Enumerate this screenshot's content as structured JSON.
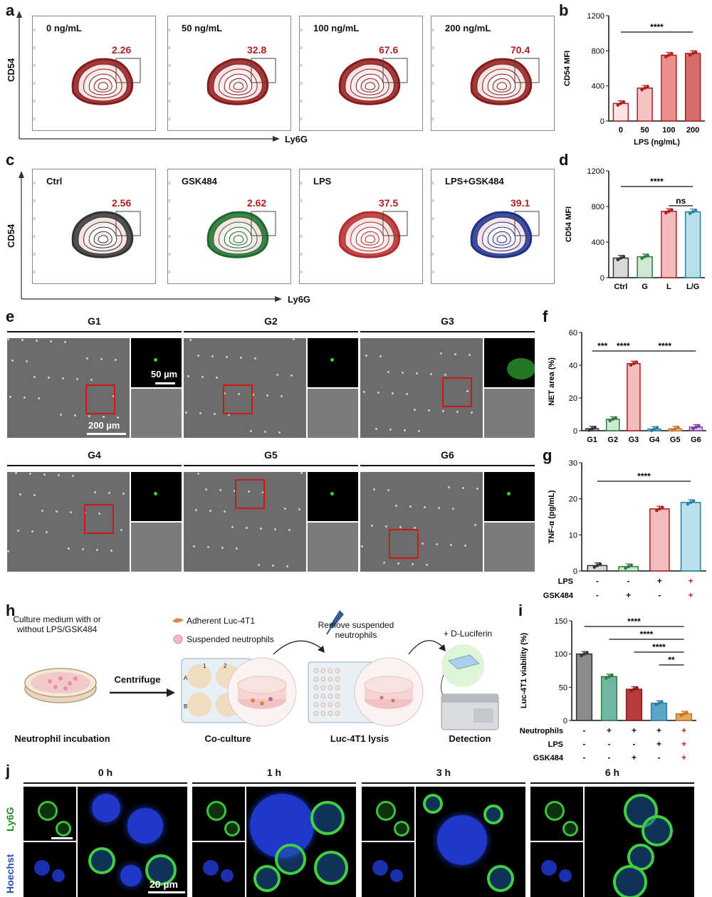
{
  "panels": {
    "a": "a",
    "b": "b",
    "c": "c",
    "d": "d",
    "e": "e",
    "f": "f",
    "g": "g",
    "h": "h",
    "i": "i",
    "j": "j"
  },
  "flow_a": {
    "titles": [
      "0 ng/mL",
      "50 ng/mL",
      "100 ng/mL",
      "200 ng/mL"
    ],
    "gates": [
      "2.26",
      "32.8",
      "67.6",
      "70.4"
    ],
    "ylabel": "CD54",
    "xlabel": "Ly6G",
    "colors": [
      "#8b1a1a",
      "#8b1a1a",
      "#8b1a1a",
      "#8b1a1a"
    ]
  },
  "flow_c": {
    "titles": [
      "Ctrl",
      "GSK484",
      "LPS",
      "LPS+GSK484"
    ],
    "gates": [
      "2.56",
      "2.62",
      "37.5",
      "39.1"
    ],
    "ylabel": "CD54",
    "xlabel": "Ly6G",
    "colors": [
      "#333333",
      "#1d6b2a",
      "#b52a2a",
      "#1f2f8a"
    ]
  },
  "micro_e": {
    "titles": [
      "G1",
      "G2",
      "G3",
      "G4",
      "G5",
      "G6"
    ],
    "scale_main": "200 µm",
    "scale_inset": "50 µm"
  },
  "flow_h": {
    "medium": "Culture medium with or without LPS/GSK484",
    "incubation": "Neutrophil incubation",
    "centrifuge": "Centrifuge",
    "adherent": "Adherent Luc-4T1",
    "suspended": "Suspended neutrophils",
    "remove": "Remove suspended neutrophils",
    "luciferin": "+ D-Luciferin",
    "coculture": "Co-culture",
    "lysis": "Luc-4T1 lysis",
    "detection": "Detection",
    "wells": [
      "1",
      "2",
      "A",
      "B"
    ]
  },
  "conf_j": {
    "times": [
      "0 h",
      "1 h",
      "3 h",
      "6 h"
    ],
    "row1": "Ly6G",
    "row2": "Hoechst",
    "scale": "20 µm"
  },
  "chart_data": [
    {
      "panel": "b",
      "type": "bar",
      "categories": [
        "0",
        "50",
        "100",
        "200"
      ],
      "values": [
        200,
        375,
        750,
        770
      ],
      "xlabel": "LPS (ng/mL)",
      "ylabel": "CD54 MFI",
      "ylim": [
        0,
        1200
      ],
      "yticks": [
        0,
        400,
        800,
        1200
      ],
      "fill": [
        "#fbe3e3",
        "#f7c4c4",
        "#ec8e8e",
        "#d86b6b"
      ],
      "stroke": "#b01f1f",
      "sig": [
        {
          "from": 0,
          "to": 3,
          "label": "****"
        }
      ]
    },
    {
      "panel": "d",
      "type": "bar",
      "categories": [
        "Ctrl",
        "G",
        "L",
        "L/G"
      ],
      "values": [
        220,
        235,
        745,
        740
      ],
      "ylabel": "CD54 MFI",
      "ylim": [
        0,
        1200
      ],
      "yticks": [
        0,
        400,
        800,
        1200
      ],
      "fill": [
        "#d9d9d9",
        "#cfe8d3",
        "#f4bcbc",
        "#b9e0ea"
      ],
      "stroke": [
        "#333333",
        "#2e7d3d",
        "#b01f1f",
        "#2a7fa3"
      ],
      "sig": [
        {
          "from": 0,
          "to": 3,
          "label": "****"
        },
        {
          "from": 2,
          "to": 3,
          "label": "ns"
        }
      ]
    },
    {
      "panel": "f",
      "type": "bar",
      "categories": [
        "G1",
        "G2",
        "G3",
        "G4",
        "G5",
        "G6"
      ],
      "values": [
        1.2,
        7,
        41,
        1,
        1.2,
        2.2
      ],
      "ylabel": "NET area (%)",
      "ylim": [
        0,
        60
      ],
      "yticks": [
        0,
        20,
        40,
        60
      ],
      "fill": [
        "#bdbdbd",
        "#cfe8d3",
        "#f4bcbc",
        "#b9e0ea",
        "#f6d9b8",
        "#dcc6ea"
      ],
      "stroke": [
        "#333333",
        "#2e7d3d",
        "#b01f1f",
        "#2a7fa3",
        "#c8742a",
        "#7a3e9e"
      ],
      "sig": [
        {
          "from": 0,
          "to": 1,
          "label": "***"
        },
        {
          "from": 1,
          "to": 2,
          "label": "****"
        },
        {
          "from": 2,
          "to": 5,
          "label": "****"
        }
      ]
    },
    {
      "panel": "g",
      "type": "bar",
      "categories": [
        "1",
        "2",
        "3",
        "4"
      ],
      "values": [
        1.5,
        1.2,
        17.2,
        19
      ],
      "ylabel": "TNF-α (pg/mL)",
      "ylim": [
        0,
        30
      ],
      "yticks": [
        0,
        10,
        20,
        30
      ],
      "fill": [
        "#d9d9d9",
        "#cfe8d3",
        "#f4bcbc",
        "#b9e0ea"
      ],
      "stroke": [
        "#333333",
        "#2e7d3d",
        "#b01f1f",
        "#2a7fa3"
      ],
      "sig": [
        {
          "from": 0,
          "to": 3,
          "label": "****"
        }
      ],
      "rows": [
        {
          "label": "LPS",
          "signs": [
            "-",
            "-",
            "+",
            "+"
          ]
        },
        {
          "label": "GSK484",
          "signs": [
            "-",
            "+",
            "-",
            "+"
          ]
        }
      ]
    },
    {
      "panel": "i",
      "type": "bar",
      "categories": [
        "1",
        "2",
        "3",
        "4",
        "5"
      ],
      "values": [
        100,
        66,
        47,
        26,
        10
      ],
      "ylabel": "Luc-4T1 viability (%)",
      "ylim": [
        0,
        150
      ],
      "yticks": [
        0,
        50,
        100,
        150
      ],
      "fill": [
        "#8c8c8c",
        "#6fb7a0",
        "#b93a3a",
        "#5aa8c6",
        "#e3a95a"
      ],
      "stroke": [
        "#333333",
        "#2e7d3d",
        "#8b1a1a",
        "#2a7fa3",
        "#c8742a"
      ],
      "sig": [
        {
          "from": 0,
          "to": 4,
          "label": "****"
        },
        {
          "from": 1,
          "to": 4,
          "label": "****"
        },
        {
          "from": 2,
          "to": 4,
          "label": "****"
        },
        {
          "from": 3,
          "to": 4,
          "label": "**"
        }
      ],
      "rows": [
        {
          "label": "Neutrophils",
          "signs": [
            "-",
            "+",
            "+",
            "+",
            "+"
          ]
        },
        {
          "label": "LPS",
          "signs": [
            "-",
            "-",
            "-",
            "+",
            "+"
          ]
        },
        {
          "label": "GSK484",
          "signs": [
            "-",
            "-",
            "+",
            "-",
            "+"
          ]
        }
      ]
    }
  ]
}
